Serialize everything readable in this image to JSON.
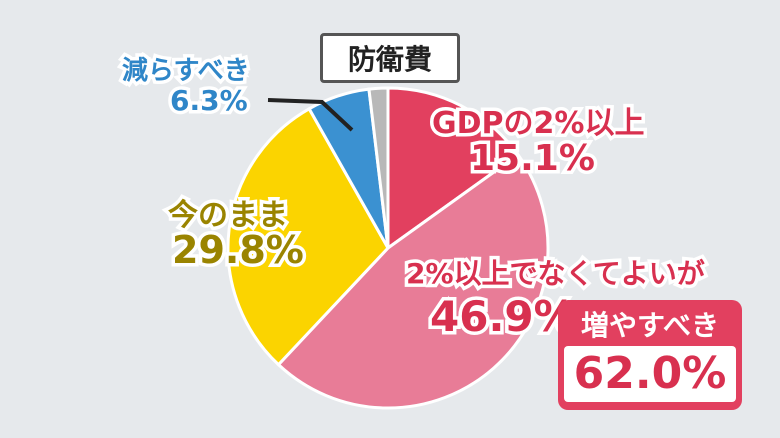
{
  "title": "防衛費",
  "colors": {
    "background": "#e6e9ec",
    "gdp2": "#e2405f",
    "not_necessarily_2": "#e87c97",
    "as_is": "#fbd400",
    "decrease": "#3b91d1",
    "other": "#b8b8b8"
  },
  "chart_data": {
    "type": "pie",
    "start_angle": "12 o'clock, clockwise",
    "slices": [
      {
        "label": "GDPの2%以上",
        "value": 15.1,
        "value_text": "15.1%",
        "color": "#e2405f"
      },
      {
        "label": "2%以上でなくてよいが",
        "value": 46.9,
        "value_text": "46.9%",
        "color": "#e87c97"
      },
      {
        "label": "今のまま",
        "value": 29.8,
        "value_text": "29.8%",
        "color": "#fbd400"
      },
      {
        "label": "減らすべき",
        "value": 6.3,
        "value_text": "6.3%",
        "color": "#3b91d1"
      },
      {
        "label": "",
        "value": 1.9,
        "value_text": "",
        "color": "#b8b8b8"
      }
    ],
    "annotation": {
      "label": "増やすべき",
      "value_text": "62.0%",
      "value": 62.0
    }
  }
}
